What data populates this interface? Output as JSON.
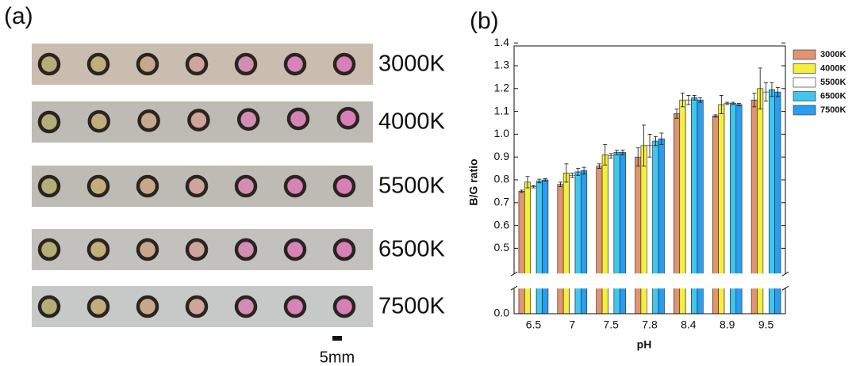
{
  "panel_a": {
    "label": "(a)",
    "strips": [
      "3000K",
      "4000K",
      "5500K",
      "6500K",
      "7500K"
    ],
    "scale_bar": "5mm"
  },
  "chart_data": {
    "type": "bar",
    "panel_label": "(b)",
    "x_label": "pH",
    "y_label": "B/G ratio",
    "categories": [
      "6.5",
      "7",
      "7.5",
      "7.8",
      "8.4",
      "8.9",
      "9.5"
    ],
    "series": [
      {
        "name": "3000K",
        "color": "#e09470",
        "values": [
          0.75,
          0.78,
          0.86,
          0.9,
          1.09,
          1.08,
          1.15
        ],
        "errors": [
          0.005,
          0.01,
          0.01,
          0.04,
          0.02,
          0.005,
          0.03
        ]
      },
      {
        "name": "4000K",
        "color": "#f5ee3c",
        "values": [
          0.79,
          0.83,
          0.91,
          0.95,
          1.15,
          1.13,
          1.2
        ],
        "errors": [
          0.025,
          0.04,
          0.045,
          0.09,
          0.03,
          0.04,
          0.09
        ]
      },
      {
        "name": "5500K",
        "color": "#ffffff",
        "values": [
          0.77,
          0.82,
          0.905,
          0.95,
          1.15,
          1.135,
          1.185
        ],
        "errors": [
          0.005,
          0.01,
          0.01,
          0.05,
          0.02,
          0.005,
          0.04
        ]
      },
      {
        "name": "6500K",
        "color": "#40c6ef",
        "values": [
          0.795,
          0.835,
          0.92,
          0.97,
          1.16,
          1.135,
          1.195
        ],
        "errors": [
          0.008,
          0.015,
          0.01,
          0.02,
          0.01,
          0.005,
          0.03
        ]
      },
      {
        "name": "7500K",
        "color": "#2a9df0",
        "values": [
          0.8,
          0.84,
          0.92,
          0.98,
          1.15,
          1.13,
          1.185
        ],
        "errors": [
          0.005,
          0.015,
          0.01,
          0.025,
          0.01,
          0.005,
          0.02
        ]
      }
    ],
    "ylim": [
      0,
      1.4
    ],
    "axis_break": [
      0.1,
      0.4
    ],
    "yticks": [
      {
        "value": 0,
        "label": "0.0"
      },
      0.5,
      0.6,
      0.7,
      0.8,
      0.9,
      {
        "value": 1,
        "label": "1.0"
      },
      1.1,
      1.2,
      1.3,
      1.4
    ],
    "legend": "right"
  }
}
